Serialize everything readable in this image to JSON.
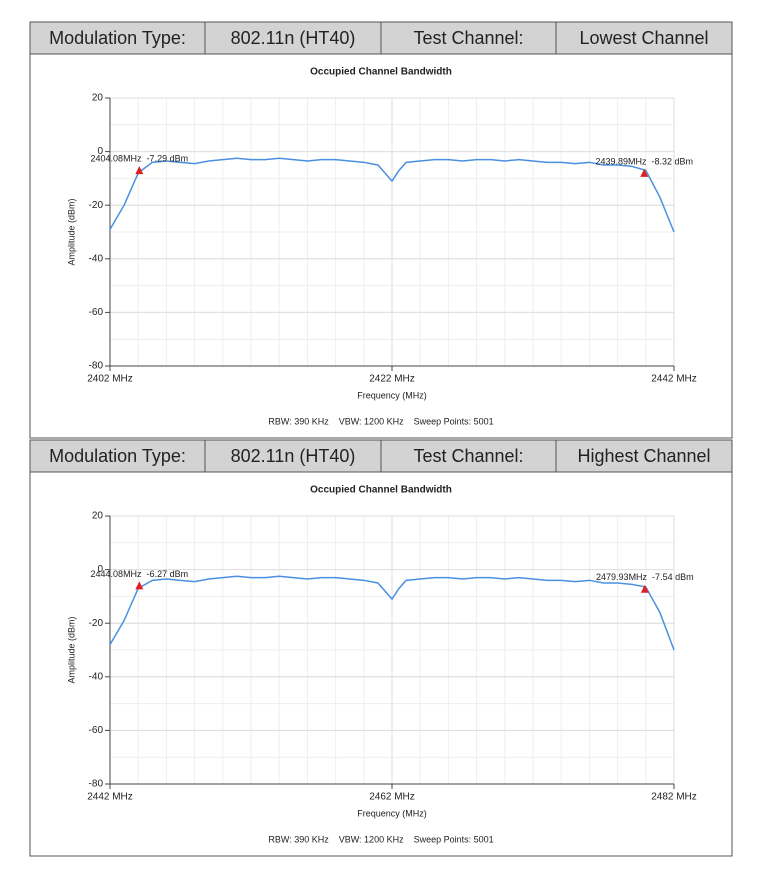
{
  "header_rows": [
    [
      "Modulation Type:",
      "802.11n (HT40)",
      "Test Channel:",
      "Lowest Channel"
    ],
    [
      "Modulation Type:",
      "802.11n (HT40)",
      "Test Channel:",
      "Highest Channel"
    ]
  ],
  "chart_data": [
    {
      "type": "line",
      "title": "Occupied Channel Bandwidth",
      "xlabel": "Frequency (MHz)",
      "ylabel": "Amplitude (dBm)",
      "footer": "RBW: 390 KHz    VBW: 1200 KHz    Sweep Points: 5001",
      "color": "#4a90e2",
      "marker_color": "#e02020",
      "grid": true,
      "xlim": [
        2402,
        2442
      ],
      "xticks": [
        {
          "value": 2402,
          "label": "2402 MHz"
        },
        {
          "value": 2422,
          "label": "2422 MHz"
        },
        {
          "value": 2442,
          "label": "2442 MHz"
        }
      ],
      "ylim": [
        -80,
        20
      ],
      "yticks": [
        20,
        0,
        -20,
        -40,
        -60,
        -80
      ],
      "x": [
        2402,
        2403,
        2404,
        2405,
        2406,
        2407,
        2408,
        2409,
        2410,
        2411,
        2412,
        2413,
        2414,
        2415,
        2416,
        2417,
        2418,
        2419,
        2420,
        2421,
        2421.5,
        2422,
        2422.5,
        2423,
        2424,
        2425,
        2426,
        2427,
        2428,
        2429,
        2430,
        2431,
        2432,
        2433,
        2434,
        2435,
        2436,
        2437,
        2438,
        2439,
        2440,
        2441,
        2442
      ],
      "values": [
        -29,
        -20,
        -8,
        -4,
        -3.5,
        -4,
        -4.5,
        -3.5,
        -3,
        -2.5,
        -3,
        -3,
        -2.5,
        -3,
        -3.5,
        -3,
        -3,
        -3.5,
        -4,
        -5,
        -8,
        -11,
        -7,
        -4,
        -3.5,
        -3,
        -3,
        -3.5,
        -3,
        -3,
        -3.5,
        -3,
        -3.5,
        -4,
        -4,
        -4.5,
        -4,
        -5,
        -5,
        -5.5,
        -7,
        -17,
        -30
      ],
      "annotations": [
        {
          "x": 2404.08,
          "y": -7.29,
          "label": "2404.08MHz  -7.29 dBm"
        },
        {
          "x": 2439.89,
          "y": -8.32,
          "label": "2439.89MHz  -8.32 dBm"
        }
      ]
    },
    {
      "type": "line",
      "title": "Occupied Channel Bandwidth",
      "xlabel": "Frequency (MHz)",
      "ylabel": "Amplitude (dBm)",
      "footer": "RBW: 390 KHz    VBW: 1200 KHz    Sweep Points: 5001",
      "color": "#4a90e2",
      "marker_color": "#e02020",
      "grid": true,
      "xlim": [
        2442,
        2482
      ],
      "xticks": [
        {
          "value": 2442,
          "label": "2442 MHz"
        },
        {
          "value": 2462,
          "label": "2462 MHz"
        },
        {
          "value": 2482,
          "label": "2482 MHz"
        }
      ],
      "ylim": [
        -80,
        20
      ],
      "yticks": [
        20,
        0,
        -20,
        -40,
        -60,
        -80
      ],
      "x": [
        2442,
        2443,
        2444,
        2445,
        2446,
        2447,
        2448,
        2449,
        2450,
        2451,
        2452,
        2453,
        2454,
        2455,
        2456,
        2457,
        2458,
        2459,
        2460,
        2461,
        2461.5,
        2462,
        2462.5,
        2463,
        2464,
        2465,
        2466,
        2467,
        2468,
        2469,
        2470,
        2471,
        2472,
        2473,
        2474,
        2475,
        2476,
        2477,
        2478,
        2479,
        2480,
        2481,
        2482
      ],
      "values": [
        -28,
        -19,
        -7,
        -4,
        -3.5,
        -4,
        -4.5,
        -3.5,
        -3,
        -2.5,
        -3,
        -3,
        -2.5,
        -3,
        -3.5,
        -3,
        -3,
        -3.5,
        -4,
        -5,
        -8,
        -11,
        -7,
        -4,
        -3.5,
        -3,
        -3,
        -3.5,
        -3,
        -3,
        -3.5,
        -3,
        -3.5,
        -4,
        -4,
        -4.5,
        -4,
        -5,
        -5,
        -5.5,
        -6.5,
        -16,
        -30
      ],
      "annotations": [
        {
          "x": 2444.08,
          "y": -6.27,
          "label": "2444.08MHz  -6.27 dBm"
        },
        {
          "x": 2479.93,
          "y": -7.54,
          "label": "2479.93MHz  -7.54 dBm"
        }
      ]
    }
  ]
}
